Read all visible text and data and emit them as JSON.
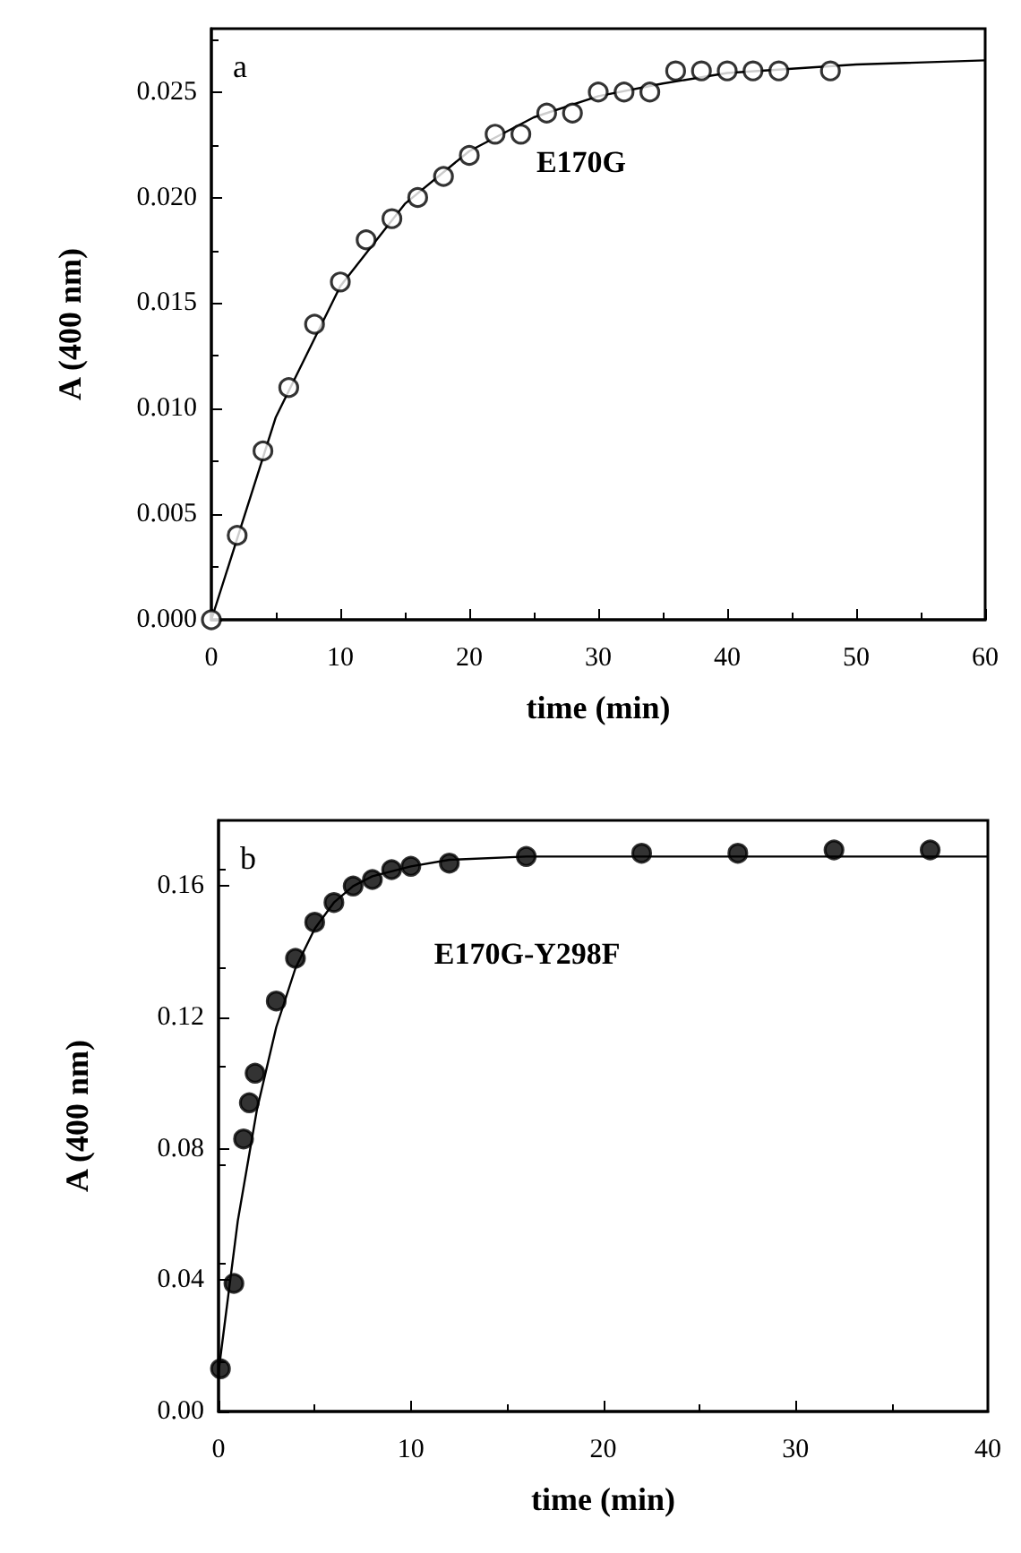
{
  "chart_data": [
    {
      "type": "scatter",
      "xlabel": "time (min)",
      "ylabel": "A (400 nm)",
      "annotations": [
        "a"
      ],
      "xlim": [
        0,
        60
      ],
      "xticks": [
        0,
        10,
        20,
        30,
        40,
        50,
        60
      ],
      "ylim": [
        0,
        0.028
      ],
      "yticks": [
        {
          "value": 0,
          "label": "0.000"
        },
        {
          "value": 0.005,
          "label": "0.005"
        },
        {
          "value": 0.01,
          "label": "0.010"
        },
        {
          "value": 0.015,
          "label": "0.015"
        },
        {
          "value": 0.02,
          "label": "0.020"
        },
        {
          "value": 0.025,
          "label": "0.025"
        }
      ],
      "grid": false,
      "legend": false,
      "series": [
        {
          "name": "E170G",
          "marker": "circle",
          "color": "#ffffff",
          "x": [
            0,
            2,
            4,
            6,
            8,
            10,
            12,
            14,
            16,
            18,
            20,
            22,
            24,
            26,
            28,
            30,
            32,
            34,
            36,
            38,
            40,
            42,
            44,
            48
          ],
          "values": [
            0,
            0.004,
            0.008,
            0.011,
            0.014,
            0.016,
            0.018,
            0.019,
            0.02,
            0.021,
            0.022,
            0.023,
            0.023,
            0.024,
            0.024,
            0.025,
            0.025,
            0.025,
            0.026,
            0.026,
            0.026,
            0.026,
            0.026,
            0.026
          ]
        },
        {
          "type": "line",
          "marker": "none",
          "color": "#000000",
          "x": [
            0,
            5,
            10,
            15,
            20,
            25,
            30,
            35,
            40,
            50,
            60
          ],
          "values": [
            0,
            0.0096,
            0.0158,
            0.0197,
            0.0222,
            0.0238,
            0.0248,
            0.0254,
            0.0259,
            0.0263,
            0.0265
          ]
        }
      ]
    },
    {
      "type": "scatter",
      "xlabel": "time (min)",
      "ylabel": "A (400 nm)",
      "annotations": [
        "b"
      ],
      "xlim": [
        0,
        40
      ],
      "xticks": [
        0,
        10,
        20,
        30,
        40
      ],
      "ylim": [
        0,
        0.18
      ],
      "yticks": [
        {
          "value": 0,
          "label": "0.00"
        },
        {
          "value": 0.04,
          "label": "0.04"
        },
        {
          "value": 0.08,
          "label": "0.08"
        },
        {
          "value": 0.12,
          "label": "0.12"
        },
        {
          "value": 0.16,
          "label": "0.16"
        }
      ],
      "grid": false,
      "legend": false,
      "series": [
        {
          "name": "E170G-Y298F",
          "marker": "circle",
          "color": "#000000",
          "x": [
            0.1,
            0.8,
            1.3,
            1.6,
            1.9,
            3,
            4,
            5,
            6,
            7,
            8,
            9,
            10,
            12,
            16,
            22,
            27,
            32,
            37
          ],
          "values": [
            0.013,
            0.039,
            0.083,
            0.094,
            0.103,
            0.125,
            0.138,
            0.149,
            0.155,
            0.16,
            0.162,
            0.165,
            0.166,
            0.167,
            0.169,
            0.17,
            0.17,
            0.171,
            0.171
          ]
        },
        {
          "type": "line",
          "marker": "none",
          "color": "#000000",
          "x": [
            0,
            0.5,
            1,
            2,
            3,
            4,
            5,
            6,
            7,
            8,
            10,
            12,
            16,
            40
          ],
          "values": [
            0.012,
            0.035,
            0.058,
            0.092,
            0.117,
            0.135,
            0.147,
            0.155,
            0.16,
            0.163,
            0.166,
            0.168,
            0.169,
            0.169
          ]
        }
      ]
    }
  ]
}
